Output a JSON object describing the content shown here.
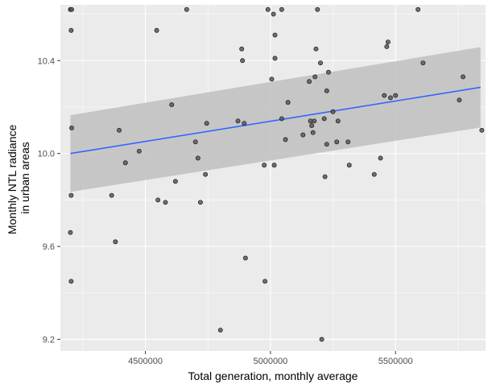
{
  "chart_data": {
    "type": "scatter",
    "title": "",
    "xlabel": "Total generation, monthly average",
    "ylabel_lines": [
      "Monthly NTL radiance",
      "in urban areas"
    ],
    "xlim": [
      4160000,
      5860000
    ],
    "ylim": [
      9.15,
      10.64
    ],
    "x_ticks": [
      4500000,
      5000000,
      5500000
    ],
    "x_tick_labels": [
      "4500000",
      "5000000",
      "5500000"
    ],
    "y_ticks": [
      9.2,
      9.6,
      10.0,
      10.4
    ],
    "y_tick_labels": [
      "9.2",
      "9.6",
      "10.0",
      "10.4"
    ],
    "grid": true,
    "legend": "none",
    "colors": {
      "panel": "#ebebeb",
      "grid": "#ffffff",
      "point_fill": "#595959",
      "point_stroke": "#1a1a1a",
      "line": "#3366ff",
      "band": "#bfbfbf"
    },
    "points": [
      {
        "x": 4200000,
        "y": 10.62
      },
      {
        "x": 4205000,
        "y": 10.62
      },
      {
        "x": 4203000,
        "y": 10.53
      },
      {
        "x": 4205000,
        "y": 10.11
      },
      {
        "x": 4203000,
        "y": 9.82
      },
      {
        "x": 4200000,
        "y": 9.66
      },
      {
        "x": 4203000,
        "y": 9.45
      },
      {
        "x": 4365000,
        "y": 9.82
      },
      {
        "x": 4380000,
        "y": 9.62
      },
      {
        "x": 4395000,
        "y": 10.1
      },
      {
        "x": 4420000,
        "y": 9.96
      },
      {
        "x": 4475000,
        "y": 10.01
      },
      {
        "x": 4545000,
        "y": 10.53
      },
      {
        "x": 4550000,
        "y": 9.8
      },
      {
        "x": 4580000,
        "y": 9.79
      },
      {
        "x": 4605000,
        "y": 10.21
      },
      {
        "x": 4620000,
        "y": 9.88
      },
      {
        "x": 4665000,
        "y": 10.62
      },
      {
        "x": 4700000,
        "y": 10.05
      },
      {
        "x": 4710000,
        "y": 9.98
      },
      {
        "x": 4720000,
        "y": 9.79
      },
      {
        "x": 4740000,
        "y": 9.91
      },
      {
        "x": 4745000,
        "y": 10.13
      },
      {
        "x": 4800000,
        "y": 9.24
      },
      {
        "x": 4870000,
        "y": 10.14
      },
      {
        "x": 4885000,
        "y": 10.45
      },
      {
        "x": 4888000,
        "y": 10.4
      },
      {
        "x": 4895000,
        "y": 10.13
      },
      {
        "x": 4900000,
        "y": 9.55
      },
      {
        "x": 4975000,
        "y": 9.95
      },
      {
        "x": 4978000,
        "y": 9.45
      },
      {
        "x": 4990000,
        "y": 10.62
      },
      {
        "x": 5005000,
        "y": 10.32
      },
      {
        "x": 5012000,
        "y": 10.6
      },
      {
        "x": 5018000,
        "y": 10.51
      },
      {
        "x": 5018000,
        "y": 10.41
      },
      {
        "x": 5015000,
        "y": 9.95
      },
      {
        "x": 5045000,
        "y": 10.62
      },
      {
        "x": 5045000,
        "y": 10.15
      },
      {
        "x": 5060000,
        "y": 10.06
      },
      {
        "x": 5070000,
        "y": 10.22
      },
      {
        "x": 5130000,
        "y": 10.08
      },
      {
        "x": 5155000,
        "y": 10.31
      },
      {
        "x": 5160000,
        "y": 10.14
      },
      {
        "x": 5165000,
        "y": 10.12
      },
      {
        "x": 5170000,
        "y": 10.09
      },
      {
        "x": 5175000,
        "y": 10.14
      },
      {
        "x": 5178000,
        "y": 10.33
      },
      {
        "x": 5182000,
        "y": 10.45
      },
      {
        "x": 5188000,
        "y": 10.62
      },
      {
        "x": 5200000,
        "y": 10.39
      },
      {
        "x": 5205000,
        "y": 9.2
      },
      {
        "x": 5215000,
        "y": 10.15
      },
      {
        "x": 5218000,
        "y": 9.9
      },
      {
        "x": 5225000,
        "y": 10.27
      },
      {
        "x": 5225000,
        "y": 10.04
      },
      {
        "x": 5232000,
        "y": 10.35
      },
      {
        "x": 5250000,
        "y": 10.18
      },
      {
        "x": 5265000,
        "y": 10.05
      },
      {
        "x": 5270000,
        "y": 10.14
      },
      {
        "x": 5310000,
        "y": 10.05
      },
      {
        "x": 5315000,
        "y": 9.95
      },
      {
        "x": 5415000,
        "y": 9.91
      },
      {
        "x": 5440000,
        "y": 9.98
      },
      {
        "x": 5455000,
        "y": 10.25
      },
      {
        "x": 5465000,
        "y": 10.46
      },
      {
        "x": 5470000,
        "y": 10.48
      },
      {
        "x": 5480000,
        "y": 10.24
      },
      {
        "x": 5500000,
        "y": 10.25
      },
      {
        "x": 5590000,
        "y": 10.62
      },
      {
        "x": 5610000,
        "y": 10.39
      },
      {
        "x": 5755000,
        "y": 10.23
      },
      {
        "x": 5770000,
        "y": 10.33
      },
      {
        "x": 5845000,
        "y": 10.1
      }
    ],
    "fit": {
      "method": "lm",
      "x": [
        4200000,
        5840000
      ],
      "y": [
        10.0,
        10.285
      ],
      "ci_upper": [
        10.165,
        10.458
      ],
      "ci_lower": [
        9.835,
        10.112
      ]
    }
  }
}
